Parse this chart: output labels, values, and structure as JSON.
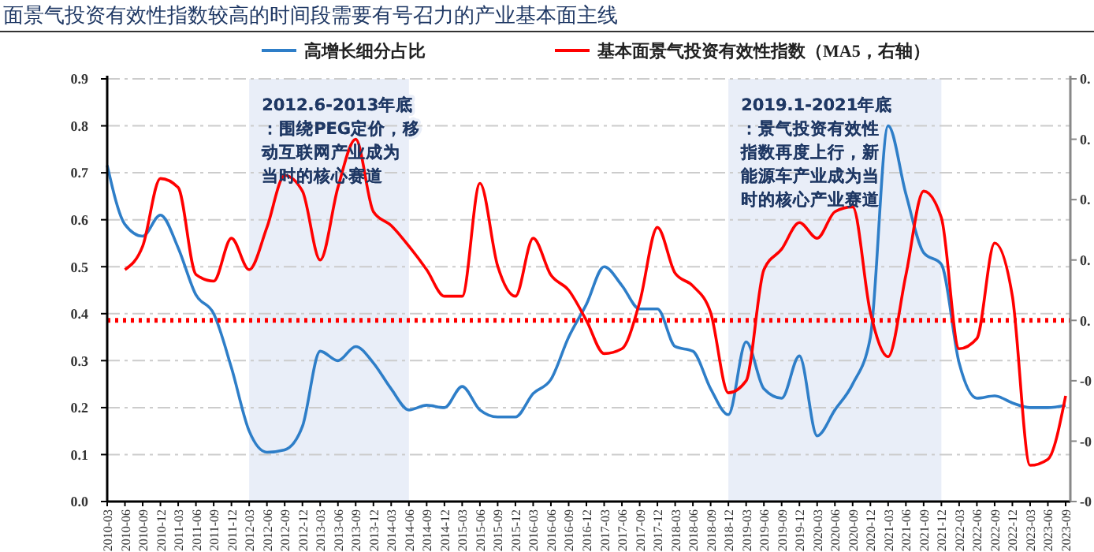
{
  "chart_data": {
    "type": "line",
    "title": "面景气投资有效性指数较高的时间段需要有号召力的产业基本面主线",
    "categories": [
      "2010-03",
      "2010-06",
      "2010-09",
      "2010-12",
      "2011-03",
      "2011-06",
      "2011-09",
      "2011-12",
      "2012-03",
      "2012-06",
      "2012-09",
      "2012-12",
      "2013-03",
      "2013-06",
      "2013-09",
      "2013-12",
      "2014-03",
      "2014-06",
      "2014-09",
      "2014-12",
      "2015-03",
      "2015-06",
      "2015-09",
      "2015-12",
      "2016-03",
      "2016-06",
      "2016-09",
      "2016-12",
      "2017-03",
      "2017-06",
      "2017-09",
      "2017-12",
      "2018-03",
      "2018-06",
      "2018-09",
      "2018-12",
      "2019-03",
      "2019-06",
      "2019-09",
      "2019-12",
      "2020-03",
      "2020-06",
      "2020-09",
      "2020-12",
      "2021-03",
      "2021-06",
      "2021-09",
      "2021-12",
      "2022-03",
      "2022-06",
      "2022-09",
      "2022-12",
      "2023-03",
      "2023-06",
      "2023-09"
    ],
    "series": [
      {
        "name": "高增长细分占比",
        "color": "#2e7ec8",
        "values": [
          0.716,
          0.59,
          0.565,
          0.61,
          0.54,
          0.44,
          0.4,
          0.285,
          0.15,
          0.105,
          0.11,
          0.16,
          0.32,
          0.3,
          0.33,
          0.295,
          0.24,
          0.195,
          0.205,
          0.2,
          0.245,
          0.195,
          0.18,
          0.18,
          0.23,
          0.26,
          0.35,
          0.42,
          0.5,
          0.46,
          0.41,
          0.41,
          0.33,
          0.32,
          0.24,
          0.185,
          0.34,
          0.24,
          0.22,
          0.31,
          0.14,
          0.195,
          0.25,
          0.35,
          0.8,
          0.655,
          0.53,
          0.505,
          0.295,
          0.22,
          0.225,
          0.21,
          0.2,
          0.2,
          0.205
        ]
      },
      {
        "name": "基本面景气投资有效性指数（MA5，右轴）",
        "color": "#ff0000",
        "axis": "y2",
        "values": [
          null,
          0.084,
          0.123,
          0.235,
          0.22,
          0.076,
          0.065,
          0.136,
          0.084,
          0.154,
          0.24,
          0.214,
          0.1,
          0.22,
          0.3,
          0.18,
          0.157,
          0.123,
          0.084,
          0.04,
          0.04,
          0.227,
          0.09,
          0.04,
          0.136,
          0.075,
          0.05,
          0.0,
          -0.055,
          -0.047,
          0.03,
          0.154,
          0.078,
          0.057,
          0.013,
          -0.12,
          -0.1,
          0.084,
          0.118,
          0.162,
          0.136,
          0.18,
          0.188,
          0.013,
          -0.06,
          0.075,
          0.214,
          0.17,
          -0.047,
          -0.03,
          0.128,
          0.04,
          -0.24,
          -0.23,
          -0.125
        ]
      }
    ],
    "ylim": [
      0,
      0.9
    ],
    "yticks": [
      {
        "value": 0,
        "label": "0.0"
      },
      0.1,
      0.2,
      0.3,
      0.4,
      0.5,
      0.6,
      0.7,
      0.8,
      0.9
    ],
    "y2lim": [
      -0.3,
      0.4
    ],
    "y2ticks": [
      {
        "value": -0.3,
        "label": "-0"
      },
      {
        "value": -0.2,
        "label": "-0"
      },
      {
        "value": -0.1,
        "label": "-0"
      },
      {
        "value": 0,
        "label": "0."
      },
      {
        "value": 0.1,
        "label": "0."
      },
      {
        "value": 0.2,
        "label": "0."
      },
      {
        "value": 0.3,
        "label": "0."
      },
      {
        "value": 0.4,
        "label": "0."
      }
    ],
    "ref_lines": [
      {
        "axis": "y2",
        "value": 0,
        "color": "#ff0000",
        "line_style": "dotted"
      }
    ],
    "bands": [
      {
        "axis": "x",
        "from": "2012-03",
        "to": "2014-06",
        "color": "#e9eef8",
        "label": "2012.6-2013年底：围绕PEG定价，移动互联网产业成为当时的核心赛道"
      },
      {
        "axis": "x",
        "from": "2018-12",
        "to": "2021-12",
        "color": "#e9eef8",
        "label": "2019.1-2021年底：景气投资有效性指数再度上行，新能源车产业成为当时的核心产业赛道"
      }
    ],
    "grid": "y",
    "legend": "top",
    "marker": "none",
    "line_style": "solid"
  }
}
